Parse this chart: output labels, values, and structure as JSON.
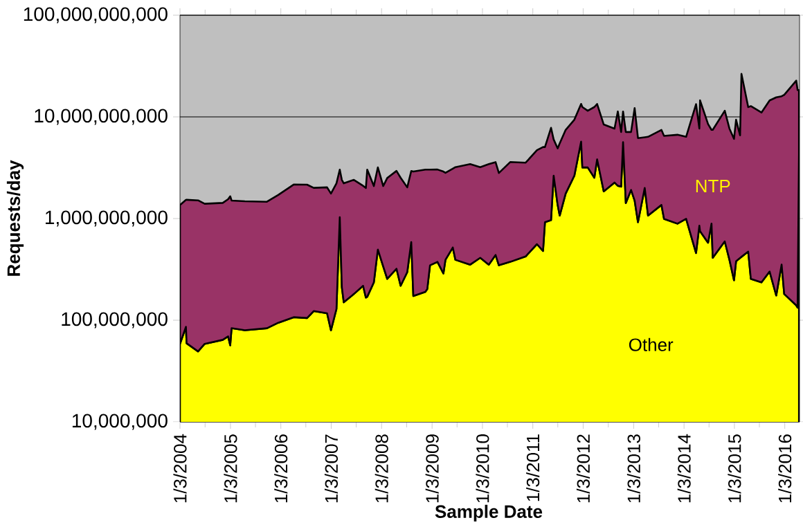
{
  "chart_data": {
    "type": "area",
    "stacked": true,
    "xlabel": "Sample Date",
    "ylabel": "Requests/day",
    "log": "y",
    "grid": "y",
    "xlim": [
      "2004-01-03",
      "2016-04-19"
    ],
    "ylim": [
      10000000,
      100000000000
    ],
    "yticks": [
      {
        "value": 10000000,
        "label": "10,000,000"
      },
      {
        "value": 100000000,
        "label": "100,000,000"
      },
      {
        "value": 1000000000,
        "label": "1,000,000,000"
      },
      {
        "value": 10000000000,
        "label": "10,000,000,000"
      },
      {
        "value": 100000000000,
        "label": "100,000,000,000"
      }
    ],
    "xticks": [
      {
        "value": "2004-01-03",
        "label": "1/3/2004"
      },
      {
        "value": "2004-07-03",
        "label": null
      },
      {
        "value": "2005-01-03",
        "label": "1/3/2005"
      },
      {
        "value": "2005-07-03",
        "label": null
      },
      {
        "value": "2006-01-03",
        "label": "1/3/2006"
      },
      {
        "value": "2006-07-03",
        "label": null
      },
      {
        "value": "2007-01-03",
        "label": "1/3/2007"
      },
      {
        "value": "2007-07-03",
        "label": null
      },
      {
        "value": "2008-01-03",
        "label": "1/3/2008"
      },
      {
        "value": "2008-07-03",
        "label": null
      },
      {
        "value": "2009-01-03",
        "label": "1/3/2009"
      },
      {
        "value": "2009-07-03",
        "label": null
      },
      {
        "value": "2010-01-03",
        "label": "1/3/2010"
      },
      {
        "value": "2010-07-03",
        "label": null
      },
      {
        "value": "2011-01-03",
        "label": "1/3/2011"
      },
      {
        "value": "2011-07-03",
        "label": null
      },
      {
        "value": "2012-01-03",
        "label": "1/3/2012"
      },
      {
        "value": "2012-07-03",
        "label": null
      },
      {
        "value": "2013-01-03",
        "label": "1/3/2013"
      },
      {
        "value": "2013-07-03",
        "label": null
      },
      {
        "value": "2014-01-03",
        "label": "1/3/2014"
      },
      {
        "value": "2014-07-03",
        "label": null
      },
      {
        "value": "2015-01-03",
        "label": "1/3/2015"
      },
      {
        "value": "2015-07-03",
        "label": null
      },
      {
        "value": "2016-01-03",
        "label": "1/3/2016"
      }
    ],
    "x": [
      "2004-01-03",
      "2004-02-15",
      "2004-02-20",
      "2004-05-13",
      "2004-06-30",
      "2004-11-08",
      "2004-12-17",
      "2005-01-01",
      "2005-01-11",
      "2005-04-17",
      "2005-09-24",
      "2005-12-15",
      "2006-04-06",
      "2006-07-12",
      "2006-08-29",
      "2006-12-04",
      "2007-01-01",
      "2007-02-10",
      "2007-03-06",
      "2007-03-21",
      "2007-04-04",
      "2007-06-16",
      "2007-08-22",
      "2007-09-11",
      "2007-09-21",
      "2007-11-08",
      "2007-12-07",
      "2008-01-15",
      "2008-02-13",
      "2008-04-20",
      "2008-05-20",
      "2008-07-07",
      "2008-08-05",
      "2008-08-20",
      "2008-11-15",
      "2008-11-29",
      "2008-12-19",
      "2009-02-11",
      "2009-03-26",
      "2009-04-10",
      "2009-06-02",
      "2009-06-21",
      "2009-10-06",
      "2009-12-18",
      "2010-02-18",
      "2010-04-08",
      "2010-05-02",
      "2010-07-23",
      "2010-11-12",
      "2011-02-02",
      "2011-03-18",
      "2011-04-01",
      "2011-05-15",
      "2011-06-03",
      "2011-07-02",
      "2011-07-17",
      "2011-08-29",
      "2011-10-31",
      "2011-12-19",
      "2011-12-28",
      "2012-02-05",
      "2012-03-24",
      "2012-04-13",
      "2012-05-31",
      "2012-08-17",
      "2012-09-10",
      "2012-10-04",
      "2012-10-18",
      "2012-11-07",
      "2012-12-15",
      "2013-01-10",
      "2013-02-03",
      "2013-03-24",
      "2013-04-17",
      "2013-07-23",
      "2013-08-11",
      "2013-11-16",
      "2014-01-18",
      "2014-03-31",
      "2014-04-24",
      "2014-04-29",
      "2014-06-26",
      "2014-07-21",
      "2014-07-30",
      "2014-10-25",
      "2014-11-28",
      "2014-12-31",
      "2015-01-15",
      "2015-02-13",
      "2015-02-23",
      "2015-04-13",
      "2015-05-02",
      "2015-07-18",
      "2015-09-15",
      "2015-11-02",
      "2015-12-11",
      "2015-12-30",
      "2016-03-26",
      "2016-04-05",
      "2016-04-15"
    ],
    "series": [
      {
        "name": "Other",
        "color": "#ffff00",
        "values": [
          58500000.0,
          86000000.0,
          59300000.0,
          49300000.0,
          58500000.0,
          64100000.0,
          69300000.0,
          56600000.0,
          83400000.0,
          79600000.0,
          83400000.0,
          94400000.0,
          107000000.0,
          105000000.0,
          123000000.0,
          117000000.0,
          79600000.0,
          129000000.0,
          1030000000.0,
          211000000.0,
          150000000.0,
          181000000.0,
          218000000.0,
          167000000.0,
          170000000.0,
          236000000.0,
          495000000.0,
          337000000.0,
          255000000.0,
          321000000.0,
          218000000.0,
          297000000.0,
          587000000.0,
          173000000.0,
          190000000.0,
          202000000.0,
          347000000.0,
          375000000.0,
          288000000.0,
          393000000.0,
          519000000.0,
          393000000.0,
          352000000.0,
          411000000.0,
          352000000.0,
          438000000.0,
          347000000.0,
          375000000.0,
          424000000.0,
          560000000.0,
          480000000.0,
          920000000.0,
          964000000.0,
          2640000000.0,
          1360000000.0,
          1070000000.0,
          1760000000.0,
          2640000000.0,
          5710000000.0,
          3180000000.0,
          3180000000.0,
          2520000000.0,
          3820000000.0,
          1850000000.0,
          2260000000.0,
          2100000000.0,
          2060000000.0,
          5640000000.0,
          1420000000.0,
          1910000000.0,
          1500000000.0,
          920000000.0,
          2000000000.0,
          1070000000.0,
          1360000000.0,
          993000000.0,
          891000000.0,
          993000000.0,
          458000000.0,
          851000000.0,
          750000000.0,
          578000000.0,
          891000000.0,
          411000000.0,
          596000000.0,
          393000000.0,
          247000000.0,
          380000000.0,
          410000000.0,
          420000000.0,
          473000000.0,
          255000000.0,
          236000000.0,
          301000000.0,
          175000000.0,
          352000000.0,
          181000000.0,
          140000000.0,
          133000000.0,
          4330000000.0
        ]
      },
      {
        "name": "NTP",
        "color": "#993366",
        "values": [
          1300000000.0,
          1440000000.0,
          1470000000.0,
          1460000000.0,
          1340000000.0,
          1360000000.0,
          1480000000.0,
          1600000000.0,
          1420000000.0,
          1400000000.0,
          1380000000.0,
          1610000000.0,
          2050000000.0,
          2050000000.0,
          1880000000.0,
          1910000000.0,
          1680000000.0,
          2090000000.0,
          2000000000.0,
          2190000000.0,
          2070000000.0,
          2220000000.0,
          1880000000.0,
          1830000000.0,
          2860000000.0,
          1850000000.0,
          2690000000.0,
          1750000000.0,
          2250000000.0,
          2620000000.0,
          2300000000.0,
          1730000000.0,
          2350000000.0,
          2730000000.0,
          2840000000.0,
          2830000000.0,
          2680000000.0,
          2660000000.0,
          2610000000.0,
          2420000000.0,
          2580000000.0,
          2810000000.0,
          3080000000.0,
          2790000000.0,
          3080000000.0,
          3150000000.0,
          2460000000.0,
          3220000000.0,
          3120000000.0,
          4140000000.0,
          4570000000.0,
          4130000000.0,
          6840000000.0,
          3360000000.0,
          3540000000.0,
          4430000000.0,
          5690000000.0,
          6740000000.0,
          7690000000.0,
          9320000000.0,
          8320000000.0,
          9980000000.0,
          9580000000.0,
          6560000000.0,
          5410000000.0,
          9200000000.0,
          5040000000.0,
          5660000000.0,
          5680000000.0,
          5190000000.0,
          10700000000.0,
          5260000000.0,
          4300000000.0,
          5300000000.0,
          6090000000.0,
          5510000000.0,
          5780000000.0,
          5380000000.0,
          12900000000.0,
          6820000000.0,
          13800000000.0,
          7920000000.0,
          6560000000.0,
          7040000000.0,
          10900000000.0,
          7280000000.0,
          5830000000.0,
          9000000000.0,
          6170000000.0,
          26100000000.0,
          12000000000.0,
          12500000000.0,
          10800000000.0,
          14200000000.0,
          15400000000.0,
          15600000000.0,
          16300000000.0,
          22600000000.0,
          18200000000.0,
          14000000000.0
        ]
      }
    ]
  }
}
